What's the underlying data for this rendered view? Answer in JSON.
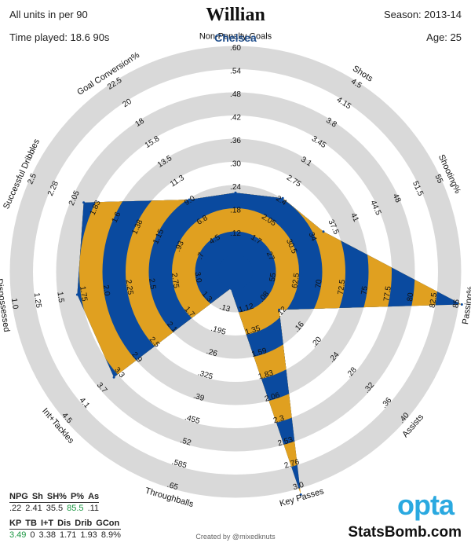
{
  "header": {
    "title": "Willian",
    "team": "Chelsea",
    "units": "All units in per 90",
    "time_played": "Time played: 18.6 90s",
    "season": "Season: 2013-14",
    "age": "Age: 25"
  },
  "colors": {
    "ring": "#d9d9d9",
    "blue": "#0a4a9f",
    "gold": "#e0a020"
  },
  "chart_data": {
    "type": "radar",
    "axes": [
      {
        "label": "Non-Penalty Goals",
        "ticks": [
          ".12",
          ".18",
          ".24",
          ".30",
          ".36",
          ".42",
          ".48",
          ".54",
          ".60"
        ],
        "min": 0.06,
        "max": 0.6,
        "value": 0.22
      },
      {
        "label": "Shots",
        "ticks": [
          "1.7",
          "2.05",
          "2.4",
          "2.75",
          "3.1",
          "3.45",
          "3.8",
          "4.15",
          "4.5"
        ],
        "min": 1.35,
        "max": 4.5,
        "value": 2.41
      },
      {
        "label": "Shooting%",
        "ticks": [
          "27",
          "30.5",
          "34",
          "37.5",
          "41",
          "44.5",
          "48",
          "51.5",
          "55"
        ],
        "min": 23.5,
        "max": 55,
        "value": 35.5
      },
      {
        "label": "Passing%",
        "ticks": [
          "55",
          "62.5",
          "70",
          "72.5",
          "75",
          "77.5",
          "80",
          "82.5",
          "85"
        ],
        "min": 50,
        "max": 85,
        "value": 85.5
      },
      {
        "label": "Assists",
        "ticks": [
          ".08",
          ".12",
          ".16",
          ".20",
          ".24",
          ".28",
          ".32",
          ".36",
          ".40"
        ],
        "min": 0.04,
        "max": 0.4,
        "value": 0.11
      },
      {
        "label": "Key Passes",
        "ticks": [
          "1.12",
          "1.35",
          "1.59",
          "1.83",
          "2.06",
          "2.3",
          "2.53",
          "2.76",
          "3.0"
        ],
        "min": 0.89,
        "max": 3.0,
        "value": 3.49
      },
      {
        "label": "Throughballs",
        "ticks": [
          ".13",
          ".195",
          ".26",
          ".325",
          ".39",
          ".455",
          ".52",
          ".585",
          ".65"
        ],
        "min": 0.065,
        "max": 0.65,
        "value": 0
      },
      {
        "label": "Int+Tackles",
        "ticks": [
          "1.3",
          "1.7",
          "2.1",
          "2.5",
          "2.9",
          "3.3",
          "3.7",
          "4.1",
          "4.5"
        ],
        "min": 0.9,
        "max": 4.5,
        "value": 3.38
      },
      {
        "label": "Dispossessed",
        "ticks": [
          "3.0",
          "2.75",
          "2.5",
          "2.25",
          "2.0",
          "1.75",
          "1.5",
          "1.25",
          "1.0"
        ],
        "min": 3.25,
        "max": 1.0,
        "value": 1.71
      },
      {
        "label": "Successful Dribbles",
        "ticks": [
          ".7",
          ".93",
          "1.15",
          "1.38",
          "1.6",
          "1.83",
          "2.05",
          "2.28",
          "2.5"
        ],
        "min": 0.48,
        "max": 2.5,
        "value": 1.93
      },
      {
        "label": "Goal Conversion%",
        "ticks": [
          "4.5",
          "6.8",
          "9.0",
          "11.3",
          "13.5",
          "15.8",
          "18",
          "20",
          "22.5"
        ],
        "min": 2.25,
        "max": 22.5,
        "value": 8.9
      }
    ]
  },
  "stats_top": {
    "headers": [
      "NPG",
      "Sh",
      "SH%",
      "P%",
      "As"
    ],
    "values": [
      ".22",
      "2.41",
      "35.5",
      "85.5",
      ".11"
    ]
  },
  "stats_bottom": {
    "headers": [
      "KP",
      "TB",
      "I+T",
      "Dis",
      "Drib",
      "GCon"
    ],
    "values": [
      "3.49",
      "0",
      "3.38",
      "1.71",
      "1.93",
      "8.9%"
    ]
  },
  "footer": {
    "credit": "Created by @mixedknuts",
    "brand": "StatsBomb.com",
    "logo": "opta"
  }
}
